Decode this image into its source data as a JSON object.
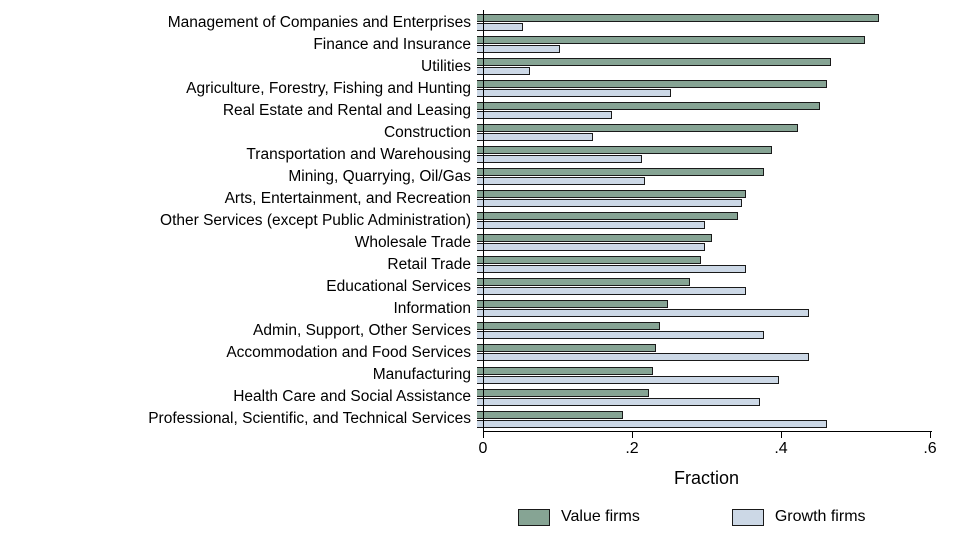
{
  "chart_data": {
    "type": "bar",
    "orientation": "horizontal",
    "title": "",
    "xlabel": "Fraction",
    "ylabel": "",
    "xlim": [
      0,
      0.6
    ],
    "x_ticks": [
      0,
      0.2,
      0.4,
      0.6
    ],
    "x_tick_labels": [
      "0",
      ".2",
      ".4",
      ".6"
    ],
    "grid": false,
    "legend_position": "bottom-right",
    "bar_border_color": "#1a1a1a",
    "categories": [
      "Management of Companies and Enterprises",
      "Finance and Insurance",
      "Utilities",
      "Agriculture, Forestry, Fishing and Hunting",
      "Real Estate and Rental and Leasing",
      "Construction",
      "Transportation and Warehousing",
      "Mining, Quarrying, Oil/Gas",
      "Arts, Entertainment, and Recreation",
      "Other Services (except Public Administration)",
      "Wholesale Trade",
      "Retail Trade",
      "Educational Services",
      "Information",
      "Admin, Support, Other Services",
      "Accommodation and Food Services",
      "Manufacturing",
      "Health Care and Social Assistance",
      "Professional, Scientific, and Technical Services"
    ],
    "series": [
      {
        "name": "Value firms",
        "color": "#86a494",
        "values": [
          0.54,
          0.52,
          0.475,
          0.47,
          0.46,
          0.43,
          0.395,
          0.385,
          0.36,
          0.35,
          0.315,
          0.3,
          0.285,
          0.255,
          0.245,
          0.24,
          0.235,
          0.23,
          0.195
        ]
      },
      {
        "name": "Growth firms",
        "color": "#ccd8e6",
        "values": [
          0.06,
          0.11,
          0.07,
          0.26,
          0.18,
          0.155,
          0.22,
          0.225,
          0.355,
          0.305,
          0.305,
          0.36,
          0.36,
          0.445,
          0.385,
          0.445,
          0.405,
          0.38,
          0.47
        ]
      }
    ]
  },
  "legend": {
    "items": [
      {
        "label": "Value firms"
      },
      {
        "label": "Growth firms"
      }
    ]
  }
}
